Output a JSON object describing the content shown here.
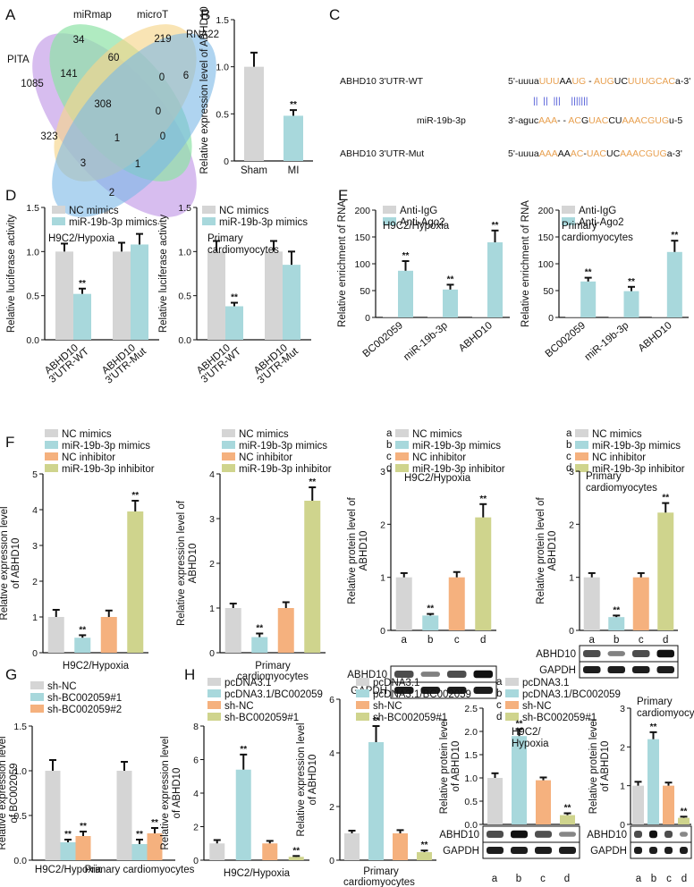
{
  "colors": {
    "grey": "#d5d5d5",
    "blue": "#a8d8dc",
    "orange": "#f5b17e",
    "green": "#cfd48d",
    "pita": "#c9a7ea",
    "mirmap": "#8fe3a6",
    "microt": "#f6d58c",
    "rna22": "#7ab8e6",
    "seq_orange": "#e8a050",
    "seq_blue": "#4b56d6"
  },
  "panel_labels": [
    "A",
    "B",
    "C",
    "D",
    "E",
    "F",
    "G",
    "H"
  ],
  "venn": {
    "sets": [
      "PITA",
      "miRmap",
      "microT",
      "RNA22"
    ],
    "regions": [
      "1085",
      "34",
      "219",
      "6",
      "141",
      "60",
      "0",
      "308",
      "0",
      "323",
      "1",
      "0",
      "3",
      "1",
      "2"
    ]
  },
  "sequence": {
    "wt_label": "ABHD10 3'UTR-WT",
    "mir_label": "miR-19b-3p",
    "mut_label": "ABHD10 3'UTR-Mut",
    "wt": [
      [
        "5'-uuua",
        "k"
      ],
      [
        "UUU",
        "o"
      ],
      [
        "AA",
        "k"
      ],
      [
        "UG",
        "o"
      ],
      [
        " - ",
        "k"
      ],
      [
        "AUG",
        "o"
      ],
      [
        "UC",
        "k"
      ],
      [
        "UUUGCAC",
        "o"
      ],
      [
        "a-3'",
        "k"
      ]
    ],
    "mir": [
      [
        "3'-aguc",
        "k"
      ],
      [
        "AAA",
        "o"
      ],
      [
        "- - ",
        "k"
      ],
      [
        "AC",
        "o"
      ],
      [
        "G",
        "k"
      ],
      [
        "UAC",
        "o"
      ],
      [
        "CU",
        "k"
      ],
      [
        "AAACGUG",
        "o"
      ],
      [
        "u-5",
        "k"
      ]
    ],
    "mut": [
      [
        "5'-uuua",
        "k"
      ],
      [
        "AAA",
        "o"
      ],
      [
        "AA",
        "k"
      ],
      [
        "AC",
        "o"
      ],
      [
        "-",
        "k"
      ],
      [
        "UAC",
        "o"
      ],
      [
        "UC",
        "k"
      ],
      [
        "AAACGUG",
        "o"
      ],
      [
        "a-3'",
        "k"
      ]
    ],
    "pairs": "||  ||  |||    ||||||| "
  },
  "chart_data": [
    {
      "id": "B",
      "type": "bar",
      "categories": [
        "Sham",
        "MI"
      ],
      "values": [
        1.0,
        0.48
      ],
      "errors": [
        0.15,
        0.06
      ],
      "sig": [
        "",
        "**"
      ],
      "ylabel": "Relative expression level of ABHD10",
      "ylim": [
        0,
        1.5
      ],
      "yticks": [
        "0",
        "0.5",
        "1.0",
        "1.5"
      ]
    },
    {
      "id": "D1",
      "type": "bar",
      "title": "H9C2/Hypoxia",
      "categories": [
        "ABHD10 3'UTR-WT",
        "ABHD10 3'UTR-Mut"
      ],
      "series": [
        {
          "name": "NC mimics",
          "values": [
            1.0,
            1.0
          ],
          "errors": [
            0.09,
            0.1
          ]
        },
        {
          "name": "miR-19b-3p mimics",
          "values": [
            0.52,
            1.08
          ],
          "errors": [
            0.06,
            0.12
          ]
        }
      ],
      "sig": [
        [
          "",
          "**"
        ],
        [
          "",
          ""
        ]
      ],
      "ylabel": "Relative luciferase activity",
      "ylim": [
        0,
        1.5
      ],
      "yticks": [
        "0.0",
        "0.5",
        "1.0",
        "1.5"
      ]
    },
    {
      "id": "D2",
      "type": "bar",
      "title": "Primary cardiomyocytes",
      "categories": [
        "ABHD10 3'UTR-WT",
        "ABHD10 3'UTR-Mut"
      ],
      "series": [
        {
          "name": "NC mimics",
          "values": [
            1.0,
            1.0
          ],
          "errors": [
            0.12,
            0.12
          ]
        },
        {
          "name": "miR-19b-3p mimics",
          "values": [
            0.38,
            0.85
          ],
          "errors": [
            0.04,
            0.15
          ]
        }
      ],
      "sig": [
        [
          "",
          "**"
        ],
        [
          "",
          ""
        ]
      ],
      "ylabel": "Relative luciferase activity",
      "ylim": [
        0,
        1.5
      ],
      "yticks": [
        "0.0",
        "0.5",
        "1.0",
        "1.5"
      ]
    },
    {
      "id": "E1",
      "type": "bar",
      "title": "H9C2/Hypoxia",
      "categories": [
        "BC002059",
        "miR-19b-3p",
        "ABHD10"
      ],
      "series": [
        {
          "name": "Anti-IgG",
          "values": [
            1,
            1,
            1
          ],
          "errors": [
            0,
            0,
            0
          ]
        },
        {
          "name": "Anti-Ago2",
          "values": [
            87,
            52,
            140
          ],
          "errors": [
            18,
            9,
            22
          ]
        }
      ],
      "sig": [
        [
          "",
          "**"
        ],
        [
          "",
          "**"
        ],
        [
          "",
          "**"
        ]
      ],
      "ylabel": "Relative enrichment of RNA",
      "ylim": [
        0,
        200
      ],
      "yticks": [
        "0",
        "50",
        "100",
        "150",
        "200"
      ]
    },
    {
      "id": "E2",
      "type": "bar",
      "title": "Primary cardiomyocytes",
      "categories": [
        "BC002059",
        "miR-19b-3p",
        "ABHD10"
      ],
      "series": [
        {
          "name": "Anti-IgG",
          "values": [
            1,
            1,
            1
          ],
          "errors": [
            0,
            0,
            0
          ]
        },
        {
          "name": "Anti-Ago2",
          "values": [
            67,
            49,
            122
          ],
          "errors": [
            7,
            8,
            21
          ]
        }
      ],
      "sig": [
        [
          "",
          "**"
        ],
        [
          "",
          "**"
        ],
        [
          "",
          "**"
        ]
      ],
      "ylabel": "Relative enrichment of RNA",
      "ylim": [
        0,
        200
      ],
      "yticks": [
        "0",
        "50",
        "100",
        "150",
        "200"
      ]
    },
    {
      "id": "F1",
      "type": "bar",
      "xlabel": "H9C2/Hypoxia",
      "categories": [
        "NC mimics",
        "miR-19b-3p mimics",
        "NC inhibitor",
        "miR-19b-3p inhibitor"
      ],
      "values": [
        1.0,
        0.42,
        1.0,
        3.95
      ],
      "errors": [
        0.2,
        0.07,
        0.18,
        0.3
      ],
      "sig": [
        "",
        "**",
        "",
        "**"
      ],
      "ylabel": "Relative expression level of ABHD10",
      "ylim": [
        0,
        5
      ],
      "yticks": [
        "0",
        "1",
        "2",
        "3",
        "4",
        "5"
      ]
    },
    {
      "id": "F2",
      "type": "bar",
      "xlabel": "Primary cardiomyocytes",
      "categories": [
        "NC mimics",
        "miR-19b-3p mimics",
        "NC inhibitor",
        "miR-19b-3p inhibitor"
      ],
      "values": [
        1.0,
        0.35,
        1.0,
        3.4
      ],
      "errors": [
        0.1,
        0.08,
        0.13,
        0.3
      ],
      "sig": [
        "",
        "**",
        "",
        "**"
      ],
      "ylabel": "Relative expression level of ABHD10",
      "ylim": [
        0,
        4
      ],
      "yticks": [
        "0",
        "1",
        "2",
        "3",
        "4"
      ]
    },
    {
      "id": "F3",
      "type": "bar",
      "title": "H9C2/Hypoxia",
      "categories": [
        "a",
        "b",
        "c",
        "d"
      ],
      "values": [
        1.0,
        0.28,
        1.0,
        2.13
      ],
      "errors": [
        0.08,
        0.03,
        0.1,
        0.25
      ],
      "sig": [
        "",
        "**",
        "",
        "**"
      ],
      "ylabel": "Relative protein level of ABHD10",
      "ylim": [
        0,
        3
      ],
      "yticks": [
        "0",
        "1",
        "2",
        "3"
      ],
      "blots": [
        "ABHD10",
        "GAPDH"
      ]
    },
    {
      "id": "F4",
      "type": "bar",
      "title": "Primary cardiomyocytes",
      "categories": [
        "a",
        "b",
        "c",
        "d"
      ],
      "values": [
        1.0,
        0.25,
        1.0,
        2.22
      ],
      "errors": [
        0.08,
        0.03,
        0.08,
        0.18
      ],
      "sig": [
        "",
        "**",
        "",
        "**"
      ],
      "ylabel": "Relative protein level of ABHD10",
      "ylim": [
        0,
        3
      ],
      "yticks": [
        "0",
        "1",
        "2",
        "3"
      ],
      "blots": [
        "ABHD10",
        "GAPDH"
      ]
    },
    {
      "id": "G",
      "type": "bar",
      "categories": [
        "H9C2/Hypoxia",
        "Primary cardiomyocytes"
      ],
      "series": [
        {
          "name": "sh-NC",
          "values": [
            1.0,
            1.0
          ],
          "errors": [
            0.12,
            0.1
          ]
        },
        {
          "name": "sh-BC002059#1",
          "values": [
            0.2,
            0.18
          ],
          "errors": [
            0.03,
            0.05
          ]
        },
        {
          "name": "sh-BC002059#2",
          "values": [
            0.27,
            0.3
          ],
          "errors": [
            0.05,
            0.06
          ]
        }
      ],
      "sig": [
        [
          "",
          "**",
          "**"
        ],
        [
          "",
          "**",
          "**"
        ]
      ],
      "ylabel": "Relative expression level of BC002059",
      "ylim": [
        0,
        1.5
      ],
      "yticks": [
        "0.0",
        "0.5",
        "1.0",
        "1.5"
      ]
    },
    {
      "id": "H1",
      "type": "bar",
      "xlabel": "H9C2/Hypoxia",
      "categories": [
        "pcDNA3.1",
        "pcDNA3.1/BC002059",
        "sh-NC",
        "sh-BC002059#1"
      ],
      "values": [
        1.0,
        5.4,
        1.0,
        0.2
      ],
      "errors": [
        0.2,
        0.9,
        0.15,
        0.05
      ],
      "sig": [
        "",
        "**",
        "",
        "**"
      ],
      "ylabel": "Relative expression level of ABHD10",
      "ylim": [
        0,
        8
      ],
      "yticks": [
        "0",
        "2",
        "4",
        "6",
        "8"
      ]
    },
    {
      "id": "H2",
      "type": "bar",
      "xlabel": "Primary cardiomyocytes",
      "categories": [
        "pcDNA3.1",
        "pcDNA3.1/BC002059",
        "sh-NC",
        "sh-BC002059#1"
      ],
      "values": [
        1.0,
        4.4,
        1.0,
        0.3
      ],
      "errors": [
        0.1,
        0.6,
        0.12,
        0.06
      ],
      "sig": [
        "",
        "**",
        "",
        "**"
      ],
      "ylabel": "Relative expression level of ABHD10",
      "ylim": [
        0,
        6
      ],
      "yticks": [
        "0",
        "2",
        "4",
        "6"
      ]
    },
    {
      "id": "H3",
      "type": "bar",
      "title": "H9C2/ Hypoxia",
      "categories": [
        "a",
        "b",
        "c",
        "d"
      ],
      "values": [
        1.0,
        1.9,
        0.95,
        0.2
      ],
      "errors": [
        0.1,
        0.15,
        0.06,
        0.04
      ],
      "sig": [
        "",
        "**",
        "",
        "**"
      ],
      "ylabel": "Relative protein level of ABHD10",
      "ylim": [
        0,
        2.5
      ],
      "yticks": [
        "0.0",
        "0.5",
        "1.0",
        "1.5",
        "2.0",
        "2.5"
      ],
      "blots": [
        "ABHD10",
        "GAPDH"
      ]
    },
    {
      "id": "H4",
      "type": "bar",
      "title": "Primary cardiomyocytes",
      "categories": [
        "a",
        "b",
        "c",
        "d"
      ],
      "values": [
        1.0,
        2.2,
        1.0,
        0.17
      ],
      "errors": [
        0.1,
        0.18,
        0.08,
        0.03
      ],
      "sig": [
        "",
        "**",
        "",
        "**"
      ],
      "ylabel": "Relative protein level of ABHD10",
      "ylim": [
        0,
        3
      ],
      "yticks": [
        "0",
        "1",
        "2",
        "3"
      ],
      "blots": [
        "ABHD10",
        "GAPDH"
      ]
    }
  ]
}
